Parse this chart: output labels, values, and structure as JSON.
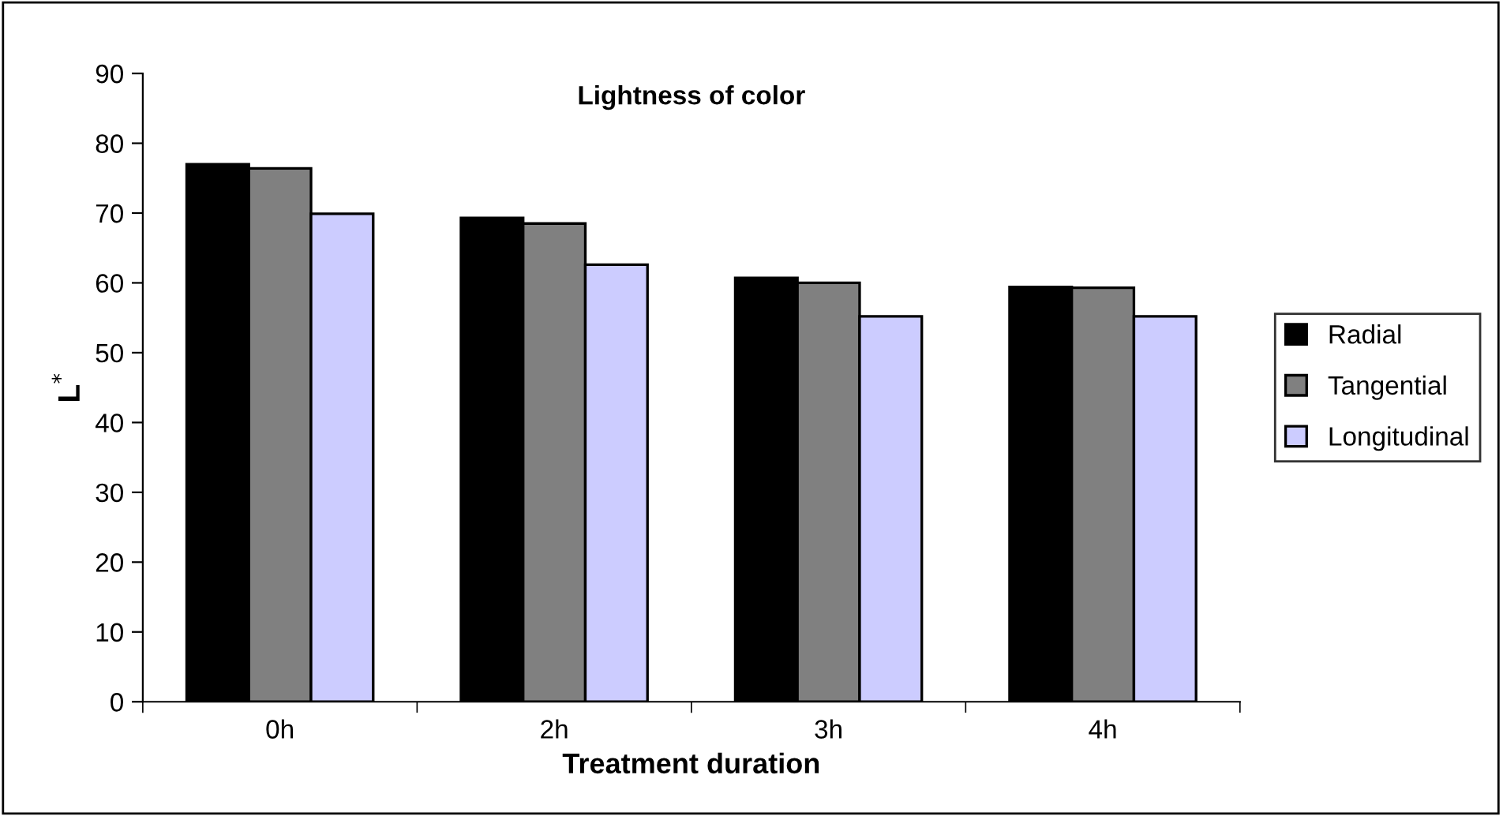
{
  "chart_data": {
    "type": "bar",
    "title": "Lightness of color",
    "xlabel": "Treatment duration",
    "ylabel": "L$^{*}$",
    "categories": [
      "0h",
      "2h",
      "3h",
      "4h"
    ],
    "series": [
      {
        "name": "Radial",
        "color": "#000000",
        "values": [
          77.0,
          69.3,
          60.7,
          59.4
        ]
      },
      {
        "name": "Tangential",
        "color": "#808080",
        "values": [
          76.4,
          68.5,
          60.0,
          59.3
        ]
      },
      {
        "name": "Longitudinal",
        "color": "#ccccff",
        "values": [
          69.9,
          62.6,
          55.2,
          55.2
        ]
      }
    ],
    "ylim": [
      0,
      90
    ],
    "yticks": [
      0,
      10,
      20,
      30,
      40,
      50,
      60,
      70,
      80,
      90
    ],
    "grid": false,
    "legend": "right"
  }
}
